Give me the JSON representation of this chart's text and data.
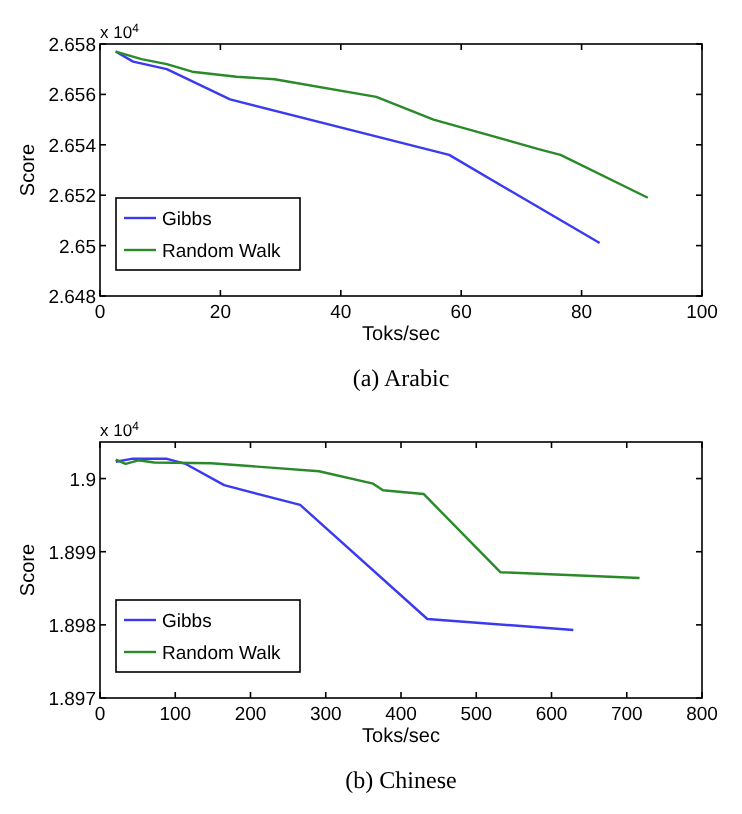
{
  "chart_data": [
    {
      "type": "line",
      "title": "(a) Arabic",
      "xlabel": "Toks/sec",
      "ylabel": "Score",
      "annotations": [
        "x 10$^{4}$"
      ],
      "xlim": [
        0,
        100
      ],
      "xticks": [
        0,
        20,
        40,
        60,
        80,
        100
      ],
      "ylim": [
        2.648,
        2.658
      ],
      "yticks": [
        2.648,
        2.65,
        2.652,
        2.654,
        2.656,
        2.658
      ],
      "legend": "bottom left",
      "grid": false,
      "series": [
        {
          "name": "Gibbs",
          "color": "#3a3af0",
          "x": [
            2.6,
            5.5,
            11.1,
            21.6,
            58.0,
            83
          ],
          "values": [
            2.6577,
            2.6573,
            2.657,
            2.6558,
            2.6536,
            2.6501
          ]
        },
        {
          "name": "Random Walk",
          "color": "#2a8a2a",
          "x": [
            2.6,
            6.9,
            11.1,
            15.3,
            22.7,
            29,
            45.9,
            55.4,
            73.3,
            76.5,
            91
          ],
          "values": [
            2.6577,
            2.6574,
            2.6572,
            2.6569,
            2.6567,
            2.6566,
            2.6559,
            2.655,
            2.6538,
            2.6536,
            2.6519
          ]
        }
      ]
    },
    {
      "type": "line",
      "title": "(b) Chinese",
      "xlabel": "Toks/sec",
      "ylabel": "Score",
      "annotations": [
        "x 10$^{4}$"
      ],
      "xlim": [
        0,
        800
      ],
      "xticks": [
        0,
        100,
        200,
        300,
        400,
        500,
        600,
        700,
        800
      ],
      "ylim": [
        1.897,
        1.9005
      ],
      "yticks": [
        1.897,
        1.898,
        1.899,
        1.9
      ],
      "legend": "bottom left",
      "grid": false,
      "series": [
        {
          "name": "Gibbs",
          "color": "#3a3af0",
          "x": [
            21,
            42,
            89,
            114,
            165,
            266,
            435,
            629
          ],
          "values": [
            1.90023,
            1.90027,
            1.90027,
            1.9002,
            1.89991,
            1.89964,
            1.89808,
            1.89793
          ]
        },
        {
          "name": "Random Walk",
          "color": "#2a8a2a",
          "x": [
            21,
            34,
            51,
            72,
            148,
            291,
            363,
            376,
            430,
            532,
            717
          ],
          "values": [
            1.90026,
            1.9002,
            1.90025,
            1.90022,
            1.90021,
            1.9001,
            1.89993,
            1.89984,
            1.89979,
            1.89872,
            1.89864
          ]
        }
      ]
    }
  ]
}
